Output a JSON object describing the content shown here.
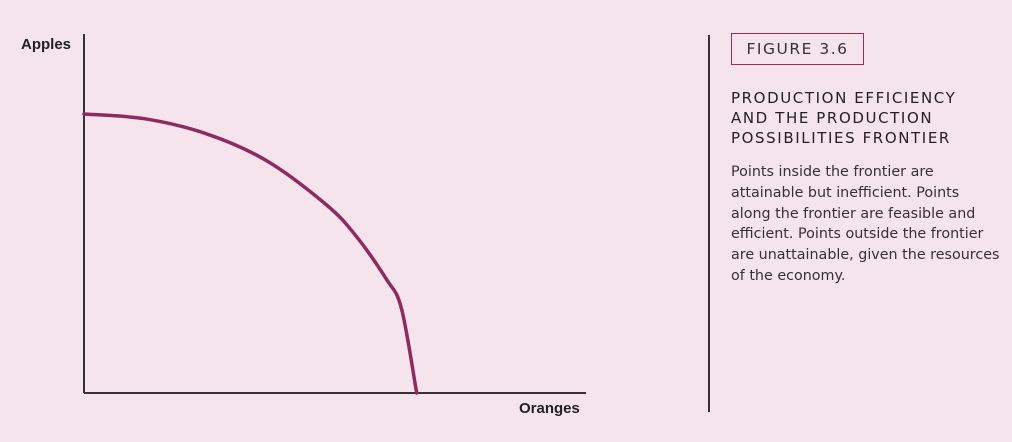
{
  "chart_data": {
    "type": "line",
    "title": "",
    "xlabel": "Oranges",
    "ylabel": "Apples",
    "x_ticks": [],
    "y_ticks": [],
    "grid": false,
    "xlim": [
      0,
      1.66
    ],
    "ylim": [
      0,
      1.0
    ],
    "series": [
      {
        "color": "#8e2a62",
        "x": [
          0.0,
          0.2,
          0.4,
          0.6,
          0.8,
          0.9,
          1.0,
          1.05,
          1.1
        ],
        "y": [
          1.0,
          0.983,
          0.931,
          0.835,
          0.676,
          0.562,
          0.408,
          0.302,
          0.0
        ]
      }
    ]
  },
  "figure": {
    "badge": "FIGURE 3.6",
    "title_lines": [
      "PRODUCTION EFFICIENCY",
      "AND THE PRODUCTION",
      "POSSIBILITIES FRONTIER"
    ],
    "body": "Points inside the frontier are attainable but inefficient. Points along the frontier are feasible and efficient. Points outside the frontier are unattainable, given the resources of the economy."
  },
  "colors": {
    "background": "#f5e4ec",
    "curve": "#8e2a62",
    "axis": "#333333",
    "badge_border": "#9b2a63"
  }
}
